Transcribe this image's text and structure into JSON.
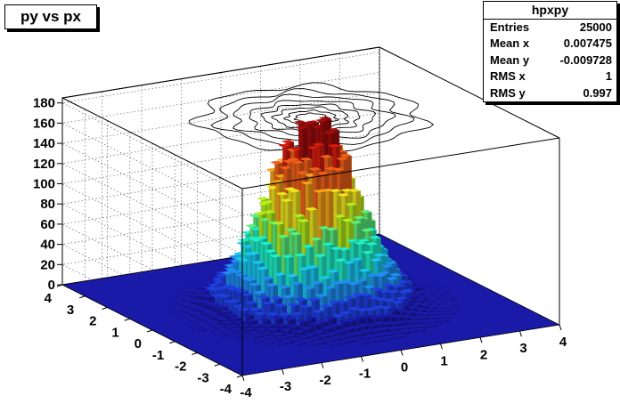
{
  "title": "py vs px",
  "stats": {
    "name": "hpxpy",
    "rows": [
      {
        "label": "Entries",
        "value": "25000"
      },
      {
        "label": "Mean x",
        "value": "0.007475"
      },
      {
        "label": "Mean y",
        "value": "-0.009728"
      },
      {
        "label": "RMS x",
        "value": "1"
      },
      {
        "label": "RMS y",
        "value": "0.997"
      }
    ]
  },
  "chart_data": {
    "type": "lego",
    "title": "py vs px",
    "xlabel": "",
    "ylabel": "",
    "zlabel": "",
    "xlim": [
      -4,
      4
    ],
    "ylim": [
      -4,
      4
    ],
    "zlim": [
      0,
      185
    ],
    "x_ticks": [
      -4,
      -3,
      -2,
      -1,
      0,
      1,
      2,
      3,
      4
    ],
    "y_ticks": [
      -4,
      -3,
      -2,
      -1,
      0,
      1,
      2,
      3,
      4
    ],
    "z_ticks": [
      0,
      20,
      40,
      60,
      80,
      100,
      120,
      140,
      160,
      180
    ],
    "bins_x": 40,
    "bins_y": 40,
    "surface": "2D gaussian, mean (0.007475, -0.009728), RMS (1, 0.997), peak about 178",
    "peak": 178,
    "palette": [
      "#1a1aa8",
      "#1f3fe0",
      "#1f8ef0",
      "#19c8f0",
      "#1eefc8",
      "#5cf07a",
      "#b4f01c",
      "#f0e41e",
      "#f5a21a",
      "#f0601a",
      "#d81c10",
      "#a00c0c"
    ],
    "top_contours": true,
    "grid": true,
    "legend": "stats box top-right"
  }
}
